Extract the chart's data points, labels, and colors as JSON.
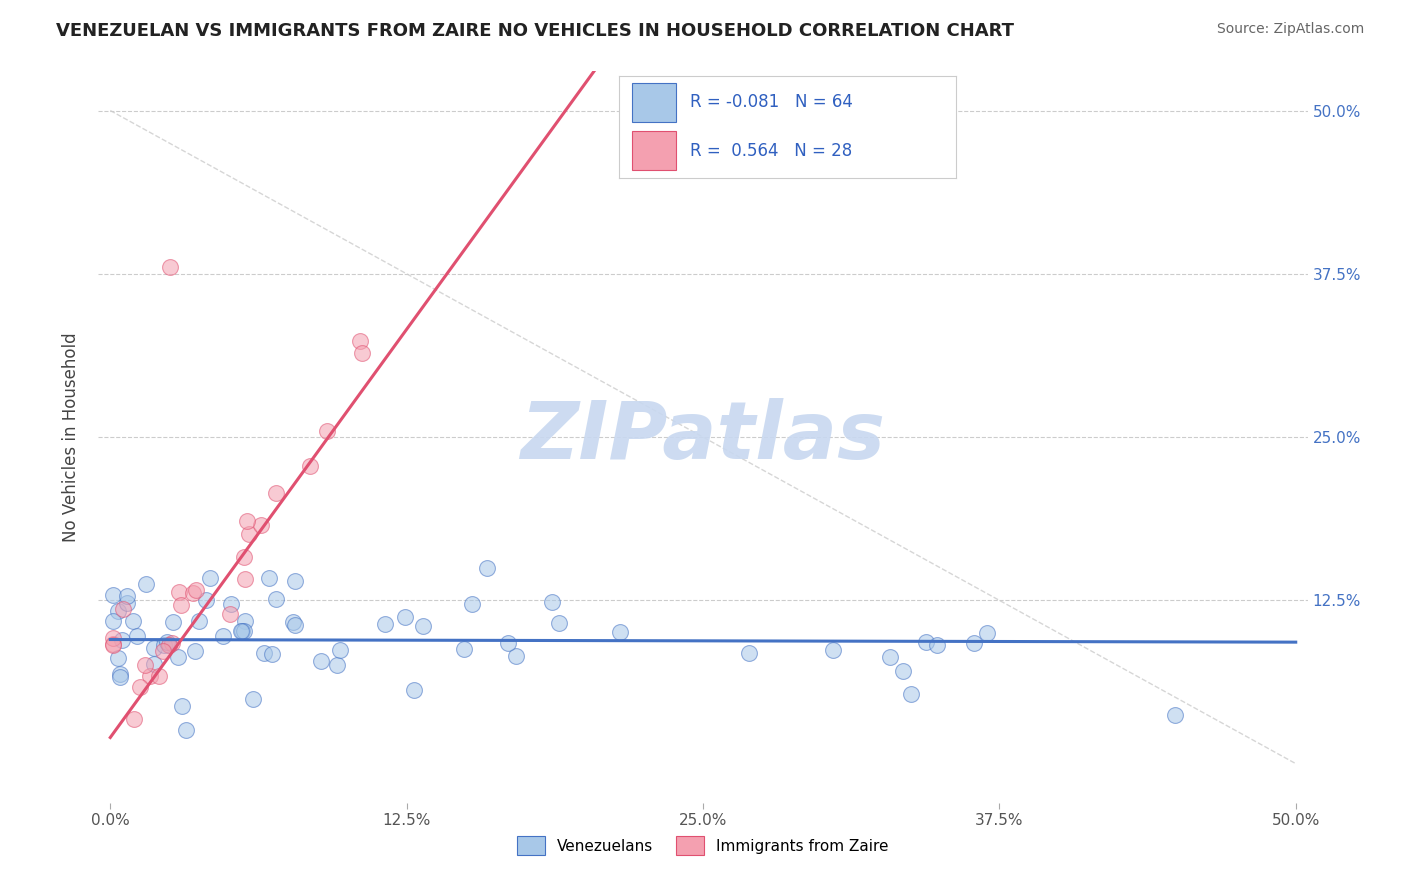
{
  "title": "VENEZUELAN VS IMMIGRANTS FROM ZAIRE NO VEHICLES IN HOUSEHOLD CORRELATION CHART",
  "source": "Source: ZipAtlas.com",
  "ylabel": "No Vehicles in Household",
  "legend1_label": "Venezuelans",
  "legend2_label": "Immigrants from Zaire",
  "R1": -0.081,
  "N1": 64,
  "R2": 0.564,
  "N2": 28,
  "color1": "#A8C8E8",
  "color2": "#F4A0B0",
  "line_color1": "#4472C4",
  "line_color2": "#E05070",
  "xlim": [
    -0.005,
    0.505
  ],
  "ylim": [
    -0.03,
    0.53
  ],
  "xtick_vals": [
    0.0,
    0.125,
    0.25,
    0.375,
    0.5
  ],
  "xtick_labels": [
    "0.0%",
    "12.5%",
    "25.0%",
    "37.5%",
    "50.0%"
  ],
  "ytick_vals": [
    0.125,
    0.25,
    0.375,
    0.5
  ],
  "ytick_labels": [
    "12.5%",
    "25.0%",
    "37.5%",
    "50.0%"
  ],
  "watermark": "ZIPatlas",
  "background_color": "#FFFFFF",
  "seed1": 42,
  "seed2": 99
}
